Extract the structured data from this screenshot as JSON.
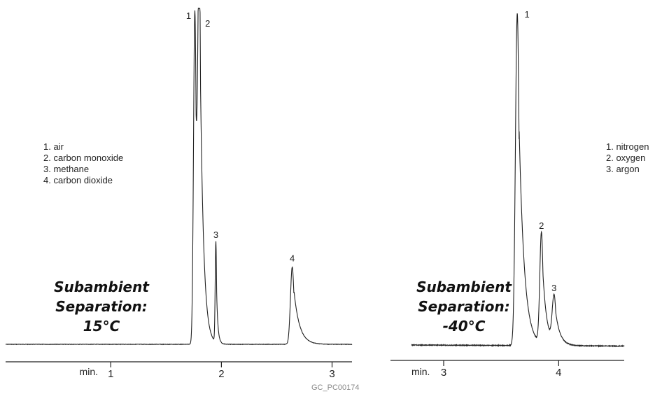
{
  "chart_data": [
    {
      "type": "line",
      "x_unit": "min.",
      "xlim": [
        0.05,
        3.18
      ],
      "x_ticks": [
        1,
        2,
        3
      ],
      "x_tick_labels": [
        "1",
        "2",
        "3"
      ],
      "title": [
        "Subambient",
        "Separation:",
        "15°C"
      ],
      "legend": [
        "1. air",
        "2. carbon monoxide",
        "3. methane",
        "4. carbon dioxide"
      ],
      "peaks": [
        {
          "label": "1",
          "x": 1.76,
          "height": 0.99
        },
        {
          "label": "2",
          "x": 1.8,
          "height": 0.96
        },
        {
          "label": "3",
          "x": 1.95,
          "height": 0.3
        },
        {
          "label": "4",
          "x": 2.64,
          "height": 0.23
        }
      ]
    },
    {
      "type": "line",
      "x_unit": "min.",
      "xlim": [
        2.72,
        4.57
      ],
      "x_ticks": [
        3,
        4
      ],
      "x_tick_labels": [
        "3",
        "4"
      ],
      "title": [
        "Subambient",
        "Separation:",
        "-40°C"
      ],
      "legend": [
        "1. nitrogen",
        "2. oxygen",
        "3. argon"
      ],
      "peaks": [
        {
          "label": "1",
          "x": 3.64,
          "height": 0.99
        },
        {
          "label": "2",
          "x": 3.85,
          "height": 0.33
        },
        {
          "label": "3",
          "x": 3.96,
          "height": 0.14
        }
      ]
    }
  ],
  "figure_code": "GC_PC00174"
}
